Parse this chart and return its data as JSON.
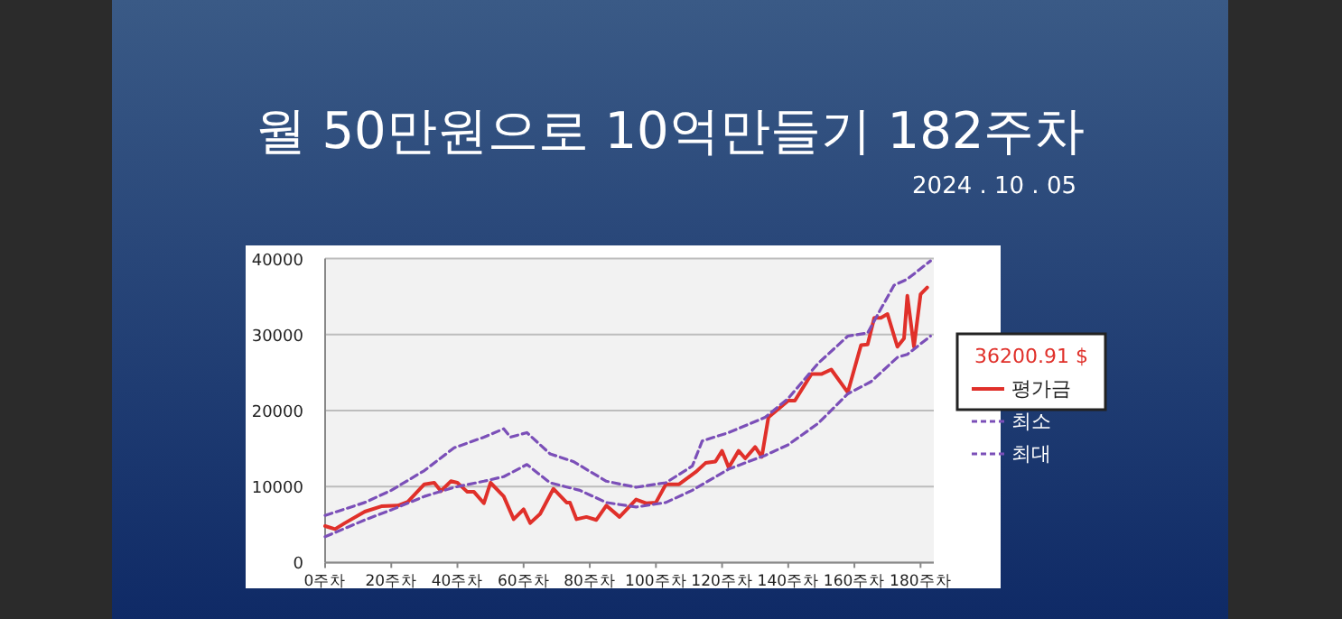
{
  "chart_data": {
    "type": "line",
    "title": "월 50만원으로 10억만들기 182주차",
    "subtitle": "2024 . 10 . 05",
    "annotations": [
      "36200.91 $"
    ],
    "xlim": [
      0,
      184
    ],
    "ylim": [
      0,
      40000
    ],
    "xticks": [
      {
        "value": 0,
        "label": "0주차"
      },
      {
        "value": 20,
        "label": "20주차"
      },
      {
        "value": 40,
        "label": "40주차"
      },
      {
        "value": 60,
        "label": "60주차"
      },
      {
        "value": 80,
        "label": "80주차"
      },
      {
        "value": 100,
        "label": "100주차"
      },
      {
        "value": 120,
        "label": "120주차"
      },
      {
        "value": 140,
        "label": "140주차"
      },
      {
        "value": 160,
        "label": "160주차"
      },
      {
        "value": 180,
        "label": "180주차"
      }
    ],
    "yticks": [
      0,
      10000,
      20000,
      30000,
      40000
    ],
    "grid": "y",
    "legend": "right",
    "series": [
      {
        "name": "평가금",
        "color": "#e0302a",
        "line_style": "solid",
        "x": [
          0,
          3,
          6,
          12,
          17,
          22,
          25,
          30,
          33,
          35,
          38,
          40,
          43,
          45,
          48,
          50,
          54,
          57,
          60,
          62,
          65,
          69,
          73,
          74,
          76,
          79,
          82,
          85,
          89,
          94,
          97,
          100,
          103,
          107,
          112,
          115,
          118,
          120,
          122,
          125,
          127,
          130,
          132,
          134,
          137,
          140,
          142,
          147,
          150,
          153,
          158,
          162,
          164,
          166,
          168,
          170,
          173,
          175,
          176,
          178,
          180,
          182
        ],
        "values": [
          4800,
          4400,
          5200,
          6700,
          7400,
          7500,
          8000,
          10300,
          10500,
          9400,
          10700,
          10500,
          9300,
          9300,
          7800,
          10500,
          8700,
          5700,
          7000,
          5200,
          6400,
          9700,
          7900,
          7900,
          5700,
          6000,
          5600,
          7500,
          6000,
          8300,
          7800,
          7900,
          10300,
          10300,
          11900,
          13100,
          13300,
          14700,
          12500,
          14700,
          13700,
          15200,
          13900,
          19100,
          20200,
          21300,
          21300,
          24800,
          24800,
          25400,
          22400,
          28600,
          28700,
          32200,
          32200,
          32700,
          28400,
          29500,
          35100,
          28400,
          35300,
          36200
        ]
      },
      {
        "name": "최소",
        "color": "#7b4fb8",
        "line_style": "dashed",
        "x": [
          0,
          12,
          21,
          30,
          39,
          48,
          54,
          61,
          68,
          77,
          85,
          94,
          103,
          111,
          122,
          133,
          140,
          149,
          158,
          165,
          173,
          176,
          183
        ],
        "values": [
          3400,
          5600,
          7100,
          8700,
          9900,
          10700,
          11300,
          12900,
          10500,
          9500,
          7900,
          7300,
          7900,
          9500,
          12300,
          14100,
          15500,
          18300,
          22200,
          23800,
          27000,
          27400,
          29800
        ]
      },
      {
        "name": "최대",
        "color": "#7b4fb8",
        "line_style": "dashed",
        "x": [
          0,
          12,
          20,
          30,
          39,
          48,
          54,
          56,
          61,
          68,
          75,
          85,
          94,
          103,
          111,
          114,
          122,
          133,
          140,
          149,
          158,
          164,
          167,
          172,
          176,
          183
        ],
        "values": [
          6200,
          7900,
          9500,
          12100,
          15100,
          16500,
          17600,
          16500,
          17100,
          14300,
          13300,
          10700,
          9900,
          10500,
          12700,
          16000,
          17100,
          19100,
          21600,
          26200,
          29800,
          30200,
          32600,
          36500,
          37300,
          39700
        ]
      }
    ]
  }
}
